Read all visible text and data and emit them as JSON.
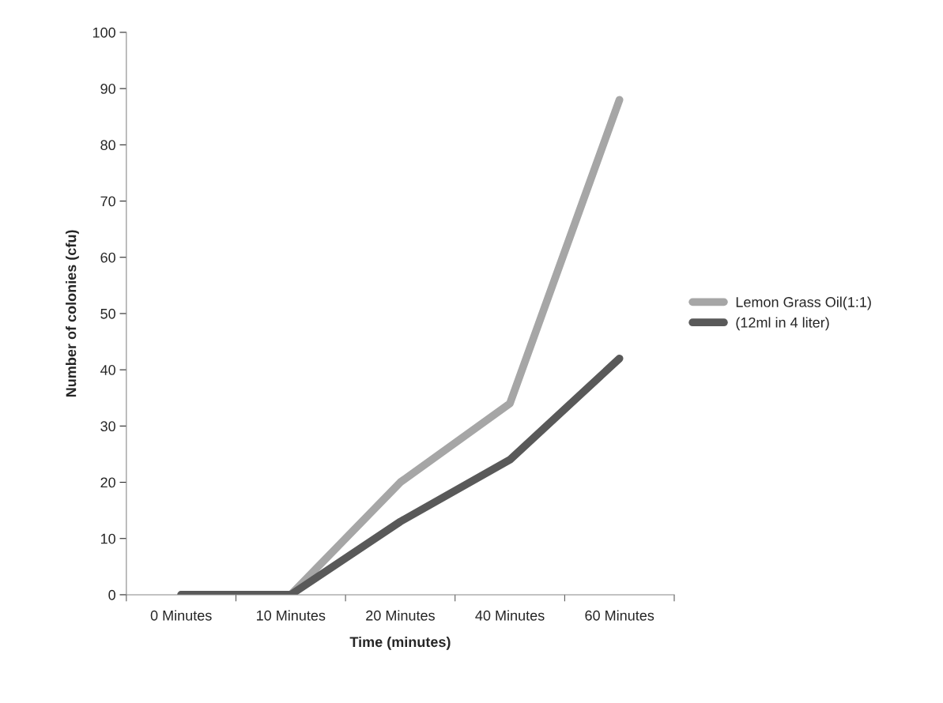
{
  "chart_data": {
    "type": "line",
    "xlabel": "Time (minutes)",
    "ylabel": "Number of colonies (cfu)",
    "categories": [
      "0 Minutes",
      "10 Minutes",
      "20 Minutes",
      "40 Minutes",
      "60 Minutes"
    ],
    "series": [
      {
        "name": "Lemon Grass Oil(1:1)",
        "color": "#a6a6a6",
        "values": [
          0,
          0,
          20,
          34,
          88
        ]
      },
      {
        "name": "(12ml in 4 liter)",
        "color": "#595959",
        "values": [
          0,
          0,
          13,
          24,
          42
        ]
      }
    ],
    "ylim": [
      0,
      100
    ],
    "yticks": [
      0,
      10,
      20,
      30,
      40,
      50,
      60,
      70,
      80,
      90,
      100
    ],
    "grid": false,
    "legend": "right",
    "marker": "none",
    "line_style": "solid"
  }
}
